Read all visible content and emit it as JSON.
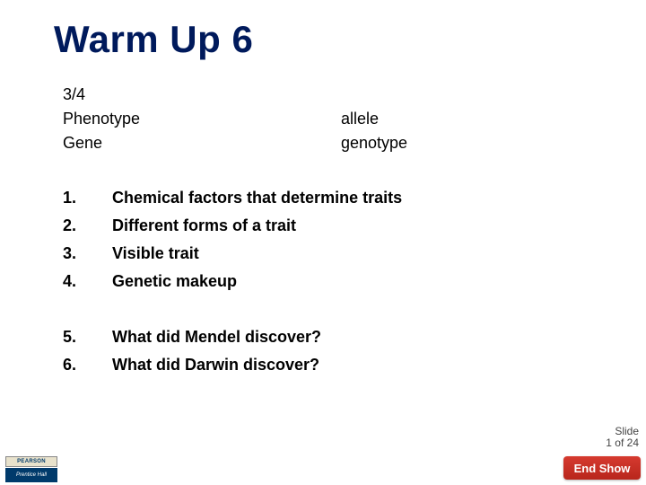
{
  "title": "Warm Up 6",
  "terms": [
    {
      "left": "3/4",
      "right": ""
    },
    {
      "left": "Phenotype",
      "right": "allele"
    },
    {
      "left": "Gene",
      "right": "genotype"
    }
  ],
  "list1": [
    {
      "num": "1.",
      "text": "Chemical factors that determine traits"
    },
    {
      "num": "2.",
      "text": "Different forms of a trait"
    },
    {
      "num": "3.",
      "text": "Visible trait"
    },
    {
      "num": "4.",
      "text": "Genetic makeup"
    }
  ],
  "list2": [
    {
      "num": "5.",
      "text": "What did Mendel discover?"
    },
    {
      "num": "6.",
      "text": "What did Darwin discover?"
    }
  ],
  "counter": {
    "line1": "Slide",
    "line2": "1 of 24"
  },
  "logo": {
    "pearson": "PEARSON",
    "ph": "Prentice\nHall"
  },
  "endshow": "End Show",
  "colors": {
    "title": "#001a5c",
    "text": "#000000",
    "endshow_bg": "#c82f24",
    "logo_ph_bg": "#003a6b"
  }
}
